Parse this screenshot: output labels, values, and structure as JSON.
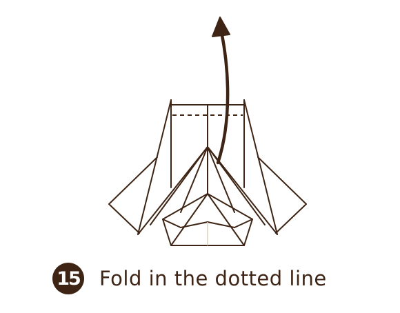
{
  "step": {
    "number": "15",
    "instruction": "Fold in the dotted line"
  },
  "colors": {
    "line": "#3d2414",
    "badge": "#3d2414",
    "badge_text": "#ffffff",
    "background": "#ffffff"
  },
  "diagram": {
    "subject": "origami",
    "fold_line": "dashed",
    "arrow": "curved-up"
  }
}
